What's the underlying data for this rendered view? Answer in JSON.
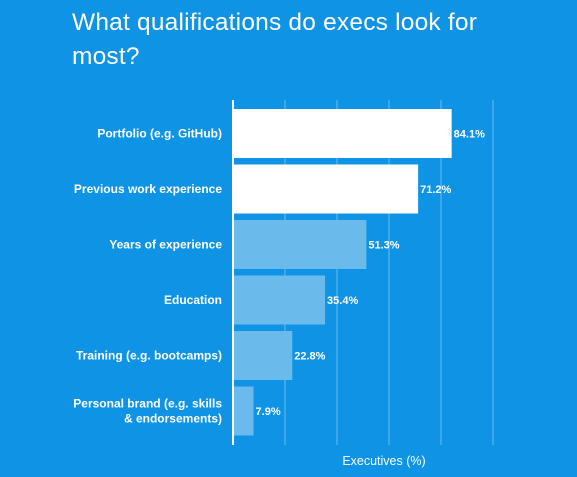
{
  "colors": {
    "background": "#0f93e4",
    "highlight_bar": "#ffffff",
    "standard_bar": "#6bbaec",
    "grid": "#66bdf0",
    "axis": "#ffffff"
  },
  "chart_data": {
    "type": "bar",
    "orientation": "horizontal",
    "title": "What qualifications do execs look for most?",
    "xlabel": "Executives (%)",
    "ylabel": "",
    "xlim": [
      0,
      100
    ],
    "grid": true,
    "gridline_values": [
      0,
      20,
      40,
      60,
      80,
      100
    ],
    "categories": [
      [
        "Portfolio (e.g. GitHub)"
      ],
      [
        "Previous work experience"
      ],
      [
        "Years of experience"
      ],
      [
        "Education"
      ],
      [
        "Training (e.g. bootcamps)"
      ],
      [
        "Personal brand (e.g. skills",
        "& endorsements)"
      ]
    ],
    "values": [
      84.1,
      71.2,
      51.3,
      35.4,
      22.8,
      7.9
    ],
    "value_labels": [
      "84.1%",
      "71.2%",
      "51.3%",
      "35.4%",
      "22.8%",
      "7.9%"
    ],
    "highlighted": [
      true,
      true,
      false,
      false,
      false,
      false
    ]
  }
}
